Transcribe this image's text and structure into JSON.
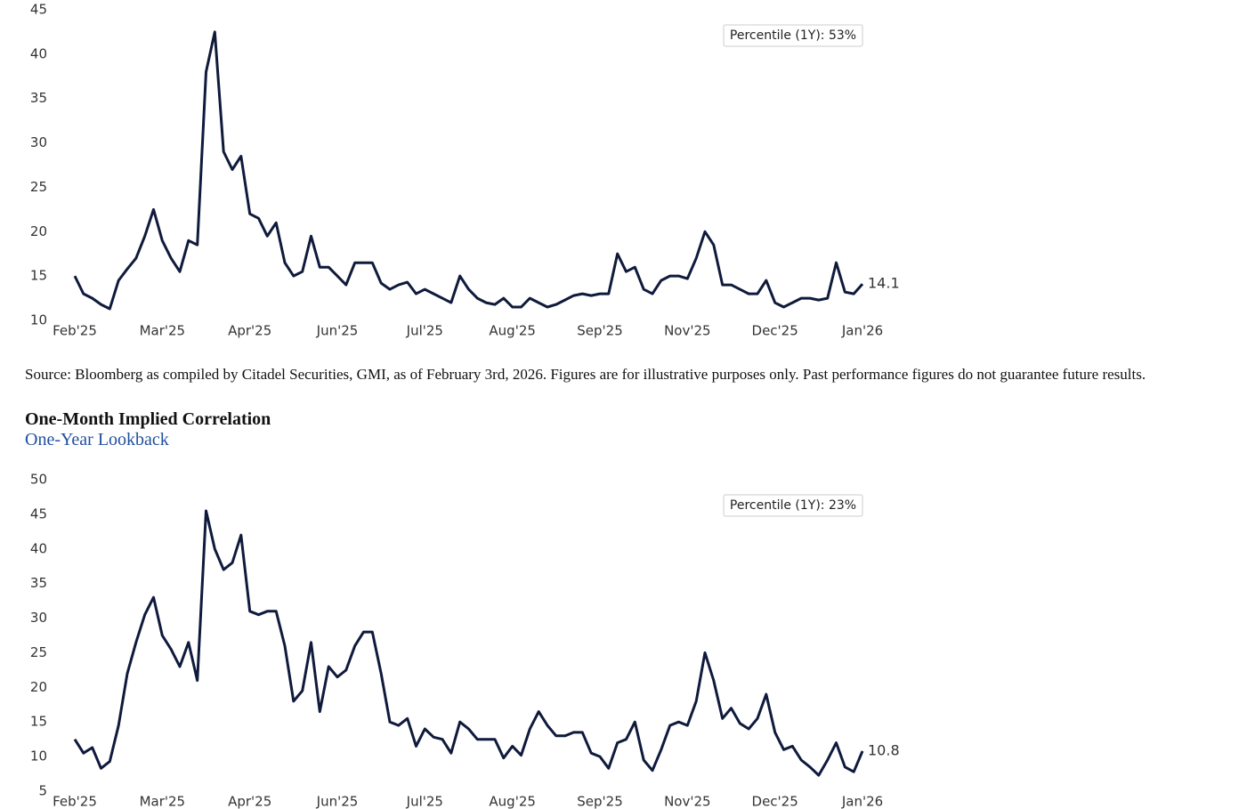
{
  "chart_data": [
    {
      "type": "line",
      "annotation": "Percentile (1Y): 53%",
      "source": "Source: Bloomberg as compiled by Citadel Securities, GMI, as of February 3rd, 2026. Figures are for illustrative purposes only. Past performance figures do not guarantee future results.",
      "color": "#0f1a3c",
      "xlim": [
        0,
        90
      ],
      "xticks": [
        {
          "value": 0,
          "label": "Feb'25"
        },
        {
          "value": 10,
          "label": "Mar'25"
        },
        {
          "value": 20,
          "label": "Apr'25"
        },
        {
          "value": 30,
          "label": "Jun'25"
        },
        {
          "value": 40,
          "label": "Jul'25"
        },
        {
          "value": 50,
          "label": "Aug'25"
        },
        {
          "value": 60,
          "label": "Sep'25"
        },
        {
          "value": 70,
          "label": "Nov'25"
        },
        {
          "value": 80,
          "label": "Dec'25"
        },
        {
          "value": 90,
          "label": "Jan'26"
        }
      ],
      "ylim": [
        10,
        45
      ],
      "yticks": [
        10,
        15,
        20,
        25,
        30,
        35,
        40,
        45
      ],
      "values": [
        15,
        13,
        12.5,
        11.8,
        11.3,
        14.5,
        15.8,
        17,
        19.5,
        22.5,
        19,
        17,
        15.5,
        19,
        18.5,
        38,
        42.5,
        29,
        27,
        28.5,
        22,
        21.5,
        19.5,
        21,
        16.5,
        15,
        15.5,
        19.5,
        16,
        16,
        15,
        14,
        16.5,
        16.5,
        16.5,
        14.2,
        13.5,
        14,
        14.3,
        13,
        13.5,
        13,
        12.5,
        12,
        15,
        13.5,
        12.5,
        12,
        11.8,
        12.5,
        11.5,
        11.5,
        12.5,
        12,
        11.5,
        11.8,
        12.3,
        12.8,
        13,
        12.8,
        13,
        13,
        17.5,
        15.5,
        16,
        13.5,
        13,
        14.5,
        15,
        15,
        14.7,
        17,
        20,
        18.5,
        14,
        14,
        13.5,
        13,
        13,
        14.5,
        12,
        11.5,
        12,
        12.5,
        12.5,
        12.3,
        12.5,
        16.5,
        13.2,
        13,
        14.1
      ]
    },
    {
      "type": "line",
      "title": "One-Month Implied Correlation",
      "subtitle": "One-Year Lookback",
      "annotation": "Percentile (1Y): 23%",
      "color": "#0f1a3c",
      "xlim": [
        0,
        90
      ],
      "xticks": [
        {
          "value": 0,
          "label": "Feb'25"
        },
        {
          "value": 10,
          "label": "Mar'25"
        },
        {
          "value": 20,
          "label": "Apr'25"
        },
        {
          "value": 30,
          "label": "Jun'25"
        },
        {
          "value": 40,
          "label": "Jul'25"
        },
        {
          "value": 50,
          "label": "Aug'25"
        },
        {
          "value": 60,
          "label": "Sep'25"
        },
        {
          "value": 70,
          "label": "Nov'25"
        },
        {
          "value": 80,
          "label": "Dec'25"
        },
        {
          "value": 90,
          "label": "Jan'26"
        }
      ],
      "ylim": [
        5,
        50
      ],
      "yticks": [
        5,
        10,
        15,
        20,
        25,
        30,
        35,
        40,
        45,
        50
      ],
      "values": [
        12.5,
        10.5,
        11.3,
        8.3,
        9.3,
        14.5,
        22,
        26.5,
        30.5,
        33,
        27.5,
        25.5,
        23,
        26.5,
        21,
        45.5,
        40,
        37,
        38,
        42,
        31,
        30.5,
        31,
        31,
        26,
        18,
        19.5,
        26.5,
        16.5,
        23,
        21.5,
        22.5,
        26,
        28,
        28,
        22,
        15,
        14.5,
        15.5,
        11.5,
        14,
        12.8,
        12.5,
        10.5,
        15,
        14,
        12.5,
        12.5,
        12.5,
        9.8,
        11.5,
        10.2,
        14,
        16.5,
        14.5,
        13,
        13,
        13.5,
        13.5,
        10.5,
        10,
        8.3,
        12,
        12.5,
        15,
        9.5,
        8,
        11,
        14.5,
        15,
        14.5,
        18,
        25,
        21,
        15.5,
        17,
        14.8,
        14,
        15.5,
        19,
        13.5,
        11,
        11.5,
        9.5,
        8.5,
        7.3,
        9.5,
        12,
        8.5,
        7.8,
        10.8
      ]
    }
  ]
}
